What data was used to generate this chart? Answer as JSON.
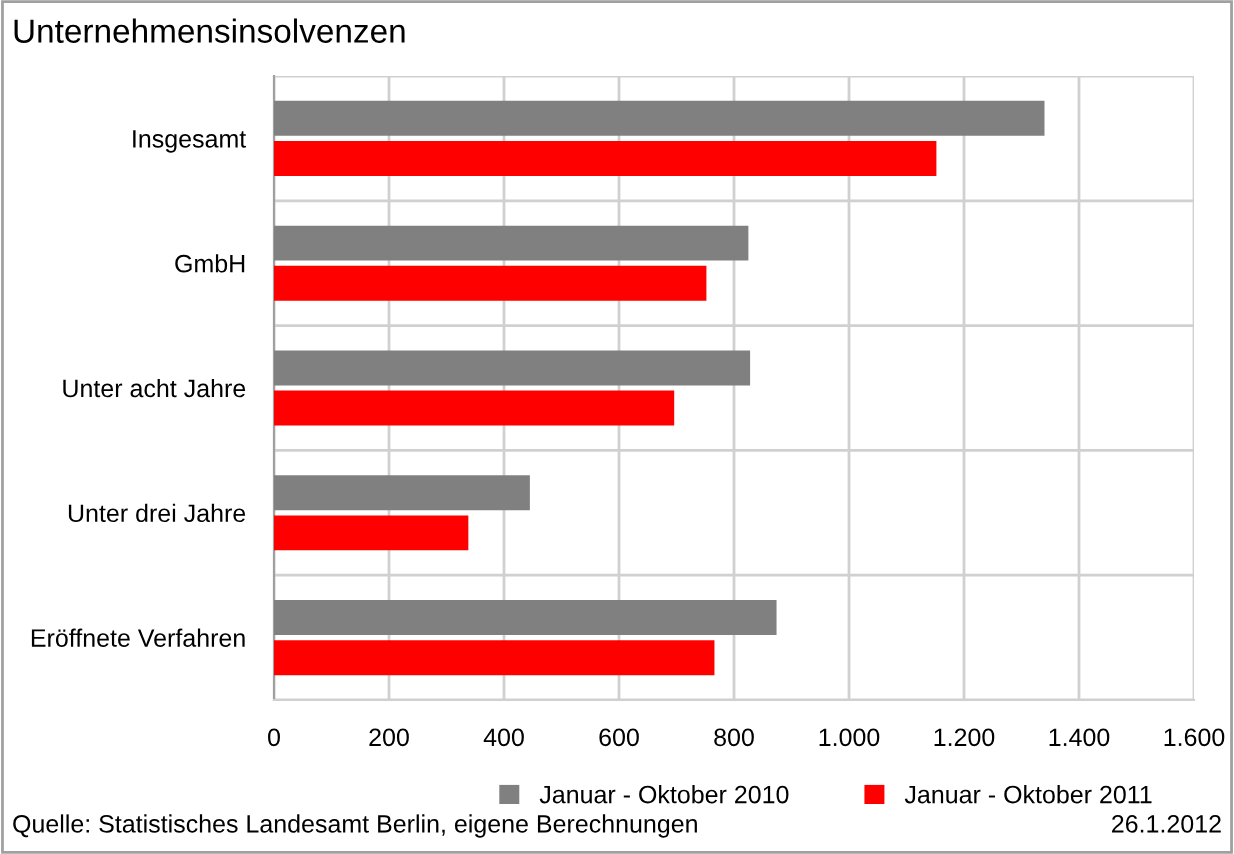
{
  "chart_data": {
    "type": "bar",
    "orientation": "horizontal",
    "title": "Unternehmensinsolvenzen",
    "categories": [
      "Insgesamt",
      "GmbH",
      "Unter acht Jahre",
      "Unter drei Jahre",
      "Eröffnete Verfahren"
    ],
    "series": [
      {
        "name": "Januar - Oktober 2010",
        "color": "#808080",
        "values": [
          1340,
          825,
          828,
          445,
          874
        ]
      },
      {
        "name": "Januar - Oktober 2011",
        "color": "#ff0000",
        "values": [
          1152,
          752,
          696,
          338,
          766
        ]
      }
    ],
    "xlim": [
      0,
      1600
    ],
    "xticks": [
      0,
      200,
      400,
      600,
      800,
      {
        "value": 1000,
        "label": "1.000"
      },
      {
        "value": 1200,
        "label": "1.200"
      },
      {
        "value": 1400,
        "label": "1.400"
      },
      {
        "value": 1600,
        "label": "1.600"
      }
    ],
    "grid": true,
    "legend": "bottom",
    "annotations": [
      "Quelle: Statistisches Landesamt Berlin, eigene Berechnungen",
      "26.1.2012"
    ]
  }
}
